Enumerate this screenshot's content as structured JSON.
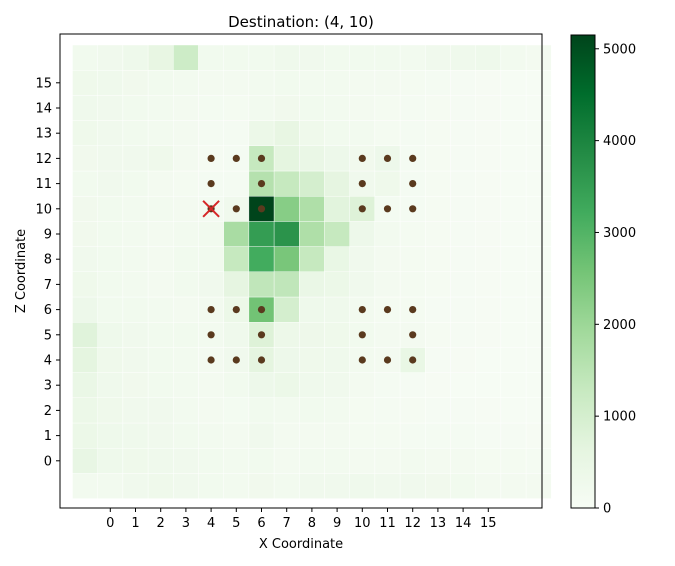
{
  "chart_data": {
    "type": "heatmap",
    "title": "Destination: (4, 10)",
    "xlabel": "X Coordinate",
    "ylabel": "Z Coordinate",
    "x_ticks": [
      "0",
      "1",
      "2",
      "3",
      "4",
      "5",
      "6",
      "7",
      "8",
      "9",
      "10",
      "11",
      "12",
      "13",
      "14",
      "15"
    ],
    "y_ticks": [
      "0",
      "1",
      "2",
      "3",
      "4",
      "5",
      "6",
      "7",
      "8",
      "9",
      "10",
      "11",
      "12",
      "13",
      "14",
      "15"
    ],
    "x_range": [
      -2,
      17
    ],
    "z_range": [
      -2,
      16
    ],
    "colormap": "Greens",
    "colorbar": {
      "min": 0,
      "max": 5150,
      "ticks": [
        0,
        1000,
        2000,
        3000,
        4000,
        5000
      ]
    },
    "rows": [
      [
        -1,
        [
          180,
          180,
          260,
          300,
          250,
          210,
          190,
          230,
          180,
          250,
          260,
          280,
          250,
          240,
          230,
          200,
          160,
          150,
          140
        ]
      ],
      [
        0,
        [
          520,
          320,
          300,
          280,
          250,
          220,
          180,
          200,
          160,
          170,
          180,
          150,
          140,
          170,
          160,
          150,
          120,
          110,
          90
        ]
      ],
      [
        1,
        [
          400,
          320,
          280,
          260,
          220,
          190,
          150,
          240,
          160,
          150,
          140,
          120,
          110,
          90,
          100,
          90,
          70,
          60,
          50
        ]
      ],
      [
        2,
        [
          400,
          300,
          260,
          240,
          190,
          160,
          130,
          210,
          180,
          200,
          170,
          120,
          90,
          80,
          70,
          60,
          50,
          40,
          30
        ]
      ],
      [
        3,
        [
          450,
          280,
          230,
          200,
          170,
          140,
          200,
          350,
          400,
          280,
          250,
          140,
          100,
          60,
          50,
          40,
          30,
          20,
          20
        ]
      ],
      [
        4,
        [
          650,
          300,
          260,
          220,
          180,
          160,
          250,
          650,
          340,
          300,
          280,
          180,
          160,
          500,
          60,
          50,
          40,
          30,
          30
        ]
      ],
      [
        5,
        [
          750,
          320,
          240,
          220,
          200,
          170,
          290,
          800,
          370,
          330,
          300,
          200,
          150,
          160,
          80,
          60,
          50,
          40,
          30
        ]
      ],
      [
        6,
        [
          350,
          220,
          200,
          180,
          160,
          180,
          400,
          2600,
          1000,
          320,
          280,
          180,
          120,
          110,
          70,
          60,
          50,
          40,
          30
        ]
      ],
      [
        7,
        [
          300,
          200,
          180,
          160,
          200,
          240,
          600,
          1400,
          1400,
          450,
          400,
          260,
          150,
          120,
          80,
          60,
          50,
          40,
          30
        ]
      ],
      [
        8,
        [
          260,
          200,
          180,
          160,
          220,
          200,
          1300,
          3200,
          2500,
          1300,
          500,
          250,
          150,
          120,
          80,
          60,
          50,
          40,
          30
        ]
      ],
      [
        9,
        [
          230,
          200,
          180,
          160,
          180,
          200,
          1800,
          3500,
          3700,
          1700,
          1300,
          350,
          180,
          120,
          80,
          60,
          50,
          40,
          30
        ]
      ],
      [
        10,
        [
          230,
          220,
          190,
          170,
          150,
          130,
          260,
          5150,
          2300,
          1700,
          700,
          800,
          130,
          100,
          80,
          60,
          50,
          40,
          30
        ]
      ],
      [
        11,
        [
          220,
          240,
          200,
          160,
          120,
          90,
          100,
          1600,
          1300,
          1000,
          600,
          260,
          300,
          100,
          80,
          60,
          50,
          40,
          30
        ]
      ],
      [
        12,
        [
          230,
          260,
          250,
          300,
          150,
          80,
          100,
          1300,
          650,
          450,
          350,
          230,
          350,
          100,
          80,
          60,
          50,
          40,
          30
        ]
      ],
      [
        13,
        [
          300,
          240,
          200,
          170,
          140,
          100,
          100,
          400,
          550,
          300,
          220,
          180,
          110,
          90,
          80,
          60,
          50,
          40,
          30
        ]
      ],
      [
        14,
        [
          290,
          260,
          220,
          190,
          160,
          130,
          120,
          180,
          230,
          200,
          180,
          150,
          120,
          90,
          80,
          60,
          50,
          40,
          30
        ]
      ],
      [
        15,
        [
          300,
          270,
          230,
          200,
          170,
          150,
          140,
          170,
          200,
          190,
          170,
          160,
          140,
          110,
          90,
          70,
          50,
          40,
          30
        ]
      ],
      [
        16,
        [
          220,
          260,
          310,
          540,
          1150,
          220,
          200,
          210,
          280,
          260,
          220,
          220,
          200,
          190,
          250,
          290,
          320,
          190,
          150
        ]
      ]
    ],
    "points": [
      [
        4,
        12
      ],
      [
        5,
        12
      ],
      [
        6,
        12
      ],
      [
        10,
        12
      ],
      [
        11,
        12
      ],
      [
        12,
        12
      ],
      [
        4,
        11
      ],
      [
        6,
        11
      ],
      [
        10,
        11
      ],
      [
        12,
        11
      ],
      [
        4,
        10
      ],
      [
        5,
        10
      ],
      [
        6,
        10
      ],
      [
        10,
        10
      ],
      [
        11,
        10
      ],
      [
        12,
        10
      ],
      [
        4,
        6
      ],
      [
        5,
        6
      ],
      [
        6,
        6
      ],
      [
        10,
        6
      ],
      [
        11,
        6
      ],
      [
        12,
        6
      ],
      [
        4,
        5
      ],
      [
        6,
        5
      ],
      [
        10,
        5
      ],
      [
        12,
        5
      ],
      [
        4,
        4
      ],
      [
        5,
        4
      ],
      [
        6,
        4
      ],
      [
        10,
        4
      ],
      [
        11,
        4
      ],
      [
        12,
        4
      ]
    ],
    "destination": [
      4,
      10
    ],
    "point_color": "#5a3a1e",
    "destination_marker_color": "#d62728"
  }
}
